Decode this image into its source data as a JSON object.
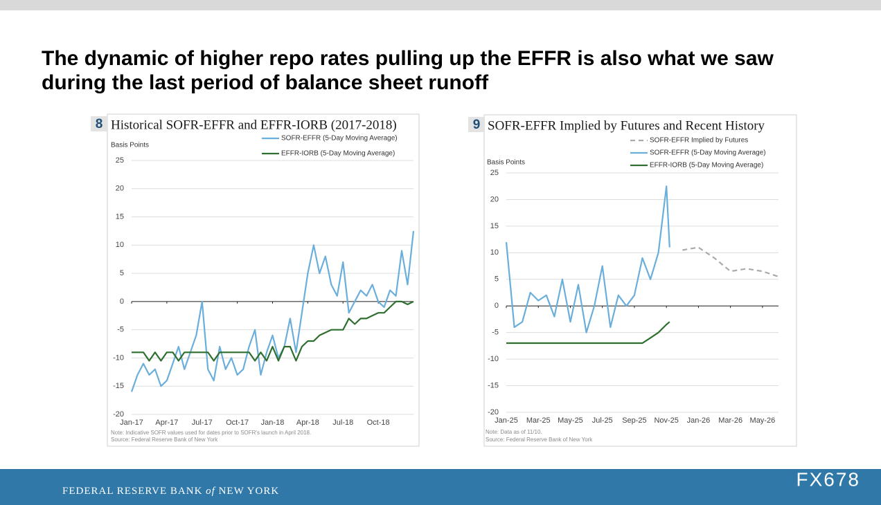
{
  "slide": {
    "title_lines": [
      "The dynamic of higher repo rates pulling up the EFFR is also what we saw",
      "during the last period of balance sheet runoff"
    ]
  },
  "chart_data": [
    {
      "type": "line",
      "number": "8",
      "title": "Historical SOFR-EFFR and EFFR-IORB (2017-2018)",
      "y_label": "Basis Points",
      "note": "Note: Indicative SOFR values used for dates prior to SOFR's launch in April 2018.",
      "source": "Source: Federal Reserve Bank of New York",
      "x": [
        0,
        0.5,
        1,
        1.5,
        2,
        2.5,
        3,
        3.5,
        4,
        4.5,
        5,
        5.5,
        6,
        6.5,
        7,
        7.5,
        8,
        8.5,
        9,
        9.5,
        10,
        10.5,
        11,
        11.5,
        12,
        12.5,
        13,
        13.5,
        14,
        14.5,
        15,
        15.5,
        16,
        16.5,
        17,
        17.5,
        18,
        18.5,
        19,
        19.5,
        20,
        20.5,
        21,
        21.5,
        22,
        22.5,
        23,
        23.5,
        24
      ],
      "series": [
        {
          "name": "SOFR-EFFR (5-Day Moving Average)",
          "color": "#6aaedc",
          "values": [
            -16,
            -13,
            -11,
            -13,
            -12,
            -15,
            -14,
            -11,
            -8,
            -12,
            -9,
            -6,
            0,
            -12,
            -14,
            -8,
            -12,
            -10,
            -13,
            -12,
            -8,
            -5,
            -13,
            -9,
            -6,
            -10,
            -8,
            -3,
            -9,
            -2,
            5,
            10,
            5,
            8,
            3,
            1,
            7,
            -2,
            0,
            2,
            1,
            3,
            0,
            -1,
            2,
            1,
            9,
            3,
            12.5
          ]
        },
        {
          "name": "EFFR-IORB (5-Day Moving Average)",
          "color": "#2e6e2e",
          "values": [
            -9,
            -9,
            -9,
            -10.5,
            -9,
            -10.5,
            -9,
            -9,
            -10.5,
            -9,
            -9,
            -9,
            -9,
            -9,
            -10.5,
            -9,
            -9,
            -9,
            -9,
            -9,
            -9,
            -10.5,
            -9,
            -10.5,
            -8,
            -10.5,
            -8,
            -8,
            -10.5,
            -8,
            -7,
            -7,
            -6,
            -5.5,
            -5,
            -5,
            -5,
            -3,
            -4,
            -3,
            -3,
            -2.5,
            -2,
            -2,
            -1,
            0,
            0,
            -0.5,
            0
          ]
        }
      ],
      "xlim": [
        0,
        24
      ],
      "xticks": [
        {
          "value": 0,
          "label": "Jan-17"
        },
        {
          "value": 3,
          "label": "Apr-17"
        },
        {
          "value": 6,
          "label": "Jul-17"
        },
        {
          "value": 9,
          "label": "Oct-17"
        },
        {
          "value": 12,
          "label": "Jan-18"
        },
        {
          "value": 15,
          "label": "Apr-18"
        },
        {
          "value": 18,
          "label": "Jul-18"
        },
        {
          "value": 21,
          "label": "Oct-18"
        }
      ],
      "ylim": [
        -20,
        25
      ],
      "yticks": [
        -20,
        -15,
        -10,
        -5,
        0,
        5,
        10,
        15,
        20,
        25
      ],
      "grid": true
    },
    {
      "type": "line",
      "number": "9",
      "title": "SOFR-EFFR Implied by Futures and Recent History",
      "y_label": "Basis Points",
      "note": "Note: Data as of 11/10.",
      "source": "Source: Federal Reserve Bank of New York",
      "x": [
        0,
        0.5,
        1,
        1.5,
        2,
        2.5,
        3,
        3.5,
        4,
        4.5,
        5,
        5.5,
        6,
        6.5,
        7,
        7.5,
        8,
        8.5,
        9,
        9.5,
        10,
        10.2,
        11,
        12,
        13,
        14,
        15,
        16,
        17
      ],
      "series": [
        {
          "name": "SOFR-EFFR Implied by Futures",
          "color": "#aaaaaa",
          "dashed": true,
          "values": [
            null,
            null,
            null,
            null,
            null,
            null,
            null,
            null,
            null,
            null,
            null,
            null,
            null,
            null,
            null,
            null,
            null,
            null,
            null,
            null,
            null,
            null,
            10.5,
            11,
            9,
            6.5,
            7,
            6.5,
            5.5
          ]
        },
        {
          "name": "SOFR-EFFR (5-Day Moving Average)",
          "color": "#6aaedc",
          "values": [
            12,
            -4,
            -3,
            2.5,
            1,
            2,
            -2,
            5,
            -3,
            4,
            -5,
            0,
            7.5,
            -4,
            2,
            0,
            2,
            9,
            5,
            10,
            22.5,
            11,
            null,
            null,
            null,
            null,
            null,
            null,
            null
          ]
        },
        {
          "name": "EFFR-IORB (5-Day Moving Average)",
          "color": "#2e6e2e",
          "values": [
            -7,
            -7,
            -7,
            -7,
            -7,
            -7,
            -7,
            -7,
            -7,
            -7,
            -7,
            -7,
            -7,
            -7,
            -7,
            -7,
            -7,
            -7,
            -6,
            -5,
            -3.5,
            -3,
            null,
            null,
            null,
            null,
            null,
            null,
            null
          ]
        }
      ],
      "xlim": [
        0,
        17
      ],
      "xticks": [
        {
          "value": 0,
          "label": "Jan-25"
        },
        {
          "value": 2,
          "label": "Mar-25"
        },
        {
          "value": 4,
          "label": "May-25"
        },
        {
          "value": 6,
          "label": "Jul-25"
        },
        {
          "value": 8,
          "label": "Sep-25"
        },
        {
          "value": 10,
          "label": "Nov-25"
        },
        {
          "value": 12,
          "label": "Jan-26"
        },
        {
          "value": 14,
          "label": "Mar-26"
        },
        {
          "value": 16,
          "label": "May-26"
        }
      ],
      "ylim": [
        -20,
        25
      ],
      "yticks": [
        -20,
        -15,
        -10,
        -5,
        0,
        5,
        10,
        15,
        20,
        25
      ],
      "grid": true
    }
  ],
  "footer": {
    "name_1": "FEDERAL RESERVE BANK",
    "name_2": "of",
    "name_3": "NEW YORK",
    "watermark": "FX678"
  }
}
